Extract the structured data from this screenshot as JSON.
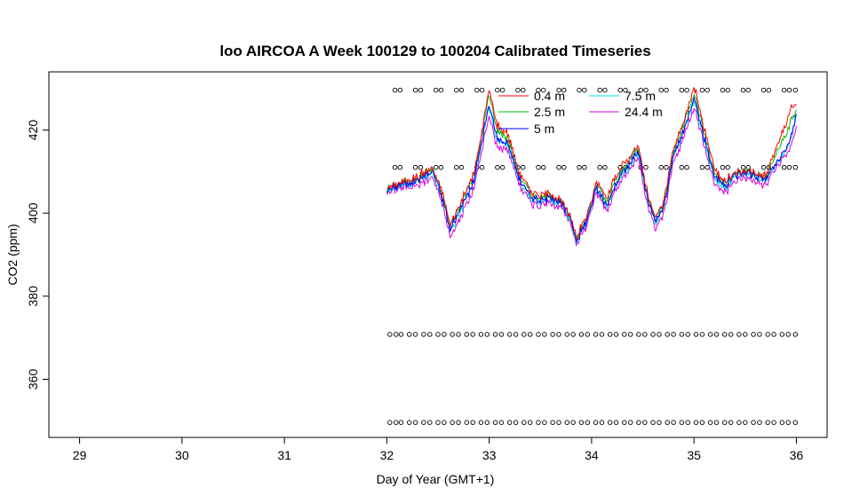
{
  "chart_data": {
    "type": "line",
    "title": "loo AIRCOA A  Week 100129 to 100204  Calibrated Timeseries",
    "xlabel": "Day of Year (GMT+1)",
    "ylabel": "CO2 (ppm)",
    "xlim": [
      28.7,
      36.3
    ],
    "ylim": [
      346,
      434
    ],
    "xticks": [
      29,
      30,
      31,
      32,
      33,
      34,
      35,
      36
    ],
    "yticks": [
      360,
      380,
      400,
      420
    ],
    "legend_position": "top-center",
    "legend_layout": [
      [
        "0.4 m",
        "7.5 m"
      ],
      [
        "2.5 m",
        "24.4 m"
      ],
      [
        "5 m"
      ]
    ],
    "series": [
      {
        "name": "0.4 m",
        "color": "#ff0000"
      },
      {
        "name": "2.5 m",
        "color": "#00bb00"
      },
      {
        "name": "5 m",
        "color": "#0000ff"
      },
      {
        "name": "7.5 m",
        "color": "#00dddd"
      },
      {
        "name": "24.4 m",
        "color": "#dd00dd"
      }
    ],
    "base_profile": {
      "x": [
        32.0,
        32.15,
        32.3,
        32.45,
        32.55,
        32.62,
        32.72,
        32.85,
        32.95,
        33.0,
        33.08,
        33.18,
        33.3,
        33.4,
        33.5,
        33.6,
        33.7,
        33.8,
        33.85,
        33.95,
        34.05,
        34.15,
        34.25,
        34.35,
        34.45,
        34.55,
        34.62,
        34.7,
        34.8,
        34.9,
        35.0,
        35.1,
        35.2,
        35.3,
        35.4,
        35.5,
        35.6,
        35.7,
        35.8,
        35.9,
        36.0
      ],
      "y": [
        405.5,
        407.0,
        408.0,
        410.0,
        403.0,
        396.0,
        401.0,
        408.0,
        420.0,
        426.0,
        418.0,
        417.0,
        408.0,
        404.0,
        403.0,
        404.0,
        402.5,
        398.0,
        393.5,
        398.0,
        406.0,
        402.0,
        408.0,
        411.0,
        415.0,
        403.0,
        398.0,
        401.0,
        414.0,
        420.0,
        428.0,
        418.0,
        409.0,
        406.5,
        409.0,
        410.0,
        409.0,
        408.0,
        412.0,
        415.0,
        423.0
      ]
    },
    "series_offsets": [
      {
        "x": [
          32.0,
          32.9,
          33.0,
          33.2,
          33.7,
          34.2,
          34.6,
          34.9,
          35.0,
          35.3,
          35.5,
          35.7,
          35.85,
          35.95,
          36.0
        ],
        "dy": [
          0.5,
          1.5,
          4.0,
          2.0,
          0.5,
          2.0,
          1.0,
          2.0,
          3.0,
          1.0,
          0.5,
          1.0,
          5.0,
          7.0,
          2.0
        ]
      },
      {
        "x": [
          32.0,
          32.9,
          33.0,
          33.2,
          33.7,
          34.2,
          34.6,
          34.9,
          35.0,
          35.3,
          35.5,
          35.7,
          35.85,
          35.95,
          36.0
        ],
        "dy": [
          0.3,
          1.0,
          2.5,
          1.0,
          0.3,
          1.0,
          0.5,
          1.0,
          1.5,
          0.5,
          0.3,
          0.5,
          3.0,
          4.0,
          1.0
        ]
      },
      {
        "x": [
          32.0,
          33.0,
          34.0,
          35.0,
          36.0
        ],
        "dy": [
          0.0,
          0.0,
          0.0,
          0.0,
          0.0
        ]
      },
      {
        "x": [
          32.0,
          33.0,
          34.0,
          35.0,
          36.0
        ],
        "dy": [
          -0.2,
          -0.5,
          -0.3,
          -0.5,
          -0.3
        ]
      },
      {
        "x": [
          32.0,
          33.0,
          33.2,
          34.0,
          35.0,
          35.9,
          36.0
        ],
        "dy": [
          -0.5,
          -2.5,
          -1.5,
          -1.0,
          -2.0,
          -1.0,
          -3.0
        ]
      }
    ],
    "calibration_levels": [
      {
        "y": 429.6,
        "x": [
          32.08,
          32.13,
          32.28,
          32.33,
          32.48,
          32.53,
          32.68,
          32.73,
          32.88,
          32.93,
          33.08,
          33.13,
          33.28,
          33.33,
          33.48,
          33.53,
          33.68,
          33.73,
          33.88,
          33.93,
          34.08,
          34.13,
          34.28,
          34.33,
          34.48,
          34.53,
          34.68,
          34.73,
          34.88,
          34.93,
          35.08,
          35.13,
          35.28,
          35.33,
          35.48,
          35.53,
          35.68,
          35.73,
          35.88,
          35.93,
          35.99
        ]
      },
      {
        "y": 411.0,
        "x": [
          32.08,
          32.13,
          32.28,
          32.33,
          32.48,
          32.53,
          32.68,
          32.73,
          32.88,
          32.93,
          33.08,
          33.13,
          33.28,
          33.33,
          33.48,
          33.53,
          33.68,
          33.73,
          33.88,
          33.93,
          34.08,
          34.13,
          34.28,
          34.33,
          34.48,
          34.53,
          34.68,
          34.73,
          34.88,
          34.93,
          35.08,
          35.13,
          35.28,
          35.33,
          35.48,
          35.53,
          35.68,
          35.73,
          35.88,
          35.93,
          35.99
        ]
      },
      {
        "y": 370.8,
        "x": [
          32.03,
          32.09,
          32.14,
          32.22,
          32.28,
          32.36,
          32.42,
          32.5,
          32.56,
          32.64,
          32.7,
          32.78,
          32.84,
          32.92,
          32.98,
          33.06,
          33.12,
          33.2,
          33.26,
          33.34,
          33.4,
          33.48,
          33.54,
          33.62,
          33.68,
          33.76,
          33.82,
          33.9,
          33.96,
          34.04,
          34.1,
          34.18,
          34.24,
          34.32,
          34.38,
          34.46,
          34.52,
          34.6,
          34.66,
          34.74,
          34.8,
          34.88,
          34.94,
          35.02,
          35.08,
          35.16,
          35.22,
          35.3,
          35.36,
          35.44,
          35.5,
          35.58,
          35.64,
          35.72,
          35.78,
          35.86,
          35.92,
          35.99
        ]
      },
      {
        "y": 349.6,
        "x": [
          32.03,
          32.09,
          32.14,
          32.22,
          32.28,
          32.36,
          32.42,
          32.5,
          32.56,
          32.64,
          32.7,
          32.78,
          32.84,
          32.92,
          32.98,
          33.06,
          33.12,
          33.2,
          33.26,
          33.34,
          33.4,
          33.48,
          33.54,
          33.62,
          33.68,
          33.76,
          33.82,
          33.9,
          33.96,
          34.04,
          34.1,
          34.18,
          34.24,
          34.32,
          34.38,
          34.46,
          34.52,
          34.6,
          34.66,
          34.74,
          34.8,
          34.88,
          34.94,
          35.02,
          35.08,
          35.16,
          35.22,
          35.3,
          35.36,
          35.44,
          35.5,
          35.58,
          35.64,
          35.72,
          35.78,
          35.86,
          35.92,
          35.99
        ]
      }
    ]
  }
}
